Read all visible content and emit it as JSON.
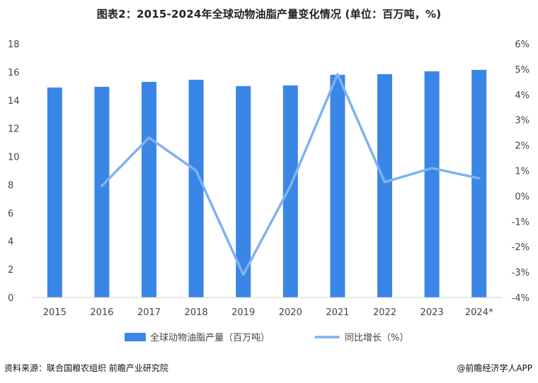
{
  "title": "图表2：2015-2024年全球动物油脂产量变化情况 (单位：百万吨，%)",
  "footer": {
    "source": "资料来源：联合国粮农组织 前瞻产业研究院",
    "brand": "@前瞻经济学人APP"
  },
  "colors": {
    "bar": "#3a86e6",
    "line": "#7fb2ee",
    "axis": "#d0d0d0",
    "text": "#444444"
  },
  "chart_data": {
    "type": "bar",
    "categories": [
      "2015",
      "2016",
      "2017",
      "2018",
      "2019",
      "2020",
      "2021",
      "2022",
      "2023",
      "2024*"
    ],
    "series": [
      {
        "name": "全球动物油脂产量（百万吨）",
        "type": "bar",
        "axis": "left",
        "values": [
          14.9,
          14.95,
          15.3,
          15.45,
          15.0,
          15.05,
          15.8,
          15.85,
          16.05,
          16.15
        ]
      },
      {
        "name": "同比增长（%）",
        "type": "line",
        "axis": "right",
        "values": [
          null,
          0.4,
          2.3,
          1.0,
          -3.1,
          0.4,
          4.8,
          0.55,
          1.1,
          0.7
        ]
      }
    ],
    "y_left": {
      "min": 0,
      "max": 18,
      "ticks": [
        "0",
        "2",
        "4",
        "6",
        "8",
        "10",
        "12",
        "14",
        "16",
        "18"
      ]
    },
    "y_right": {
      "min": -4,
      "max": 6,
      "ticks": [
        "-4%",
        "-3%",
        "-2%",
        "-1%",
        "0%",
        "1%",
        "2%",
        "3%",
        "4%",
        "5%",
        "6%"
      ]
    },
    "grid": false,
    "legend_position": "bottom"
  }
}
